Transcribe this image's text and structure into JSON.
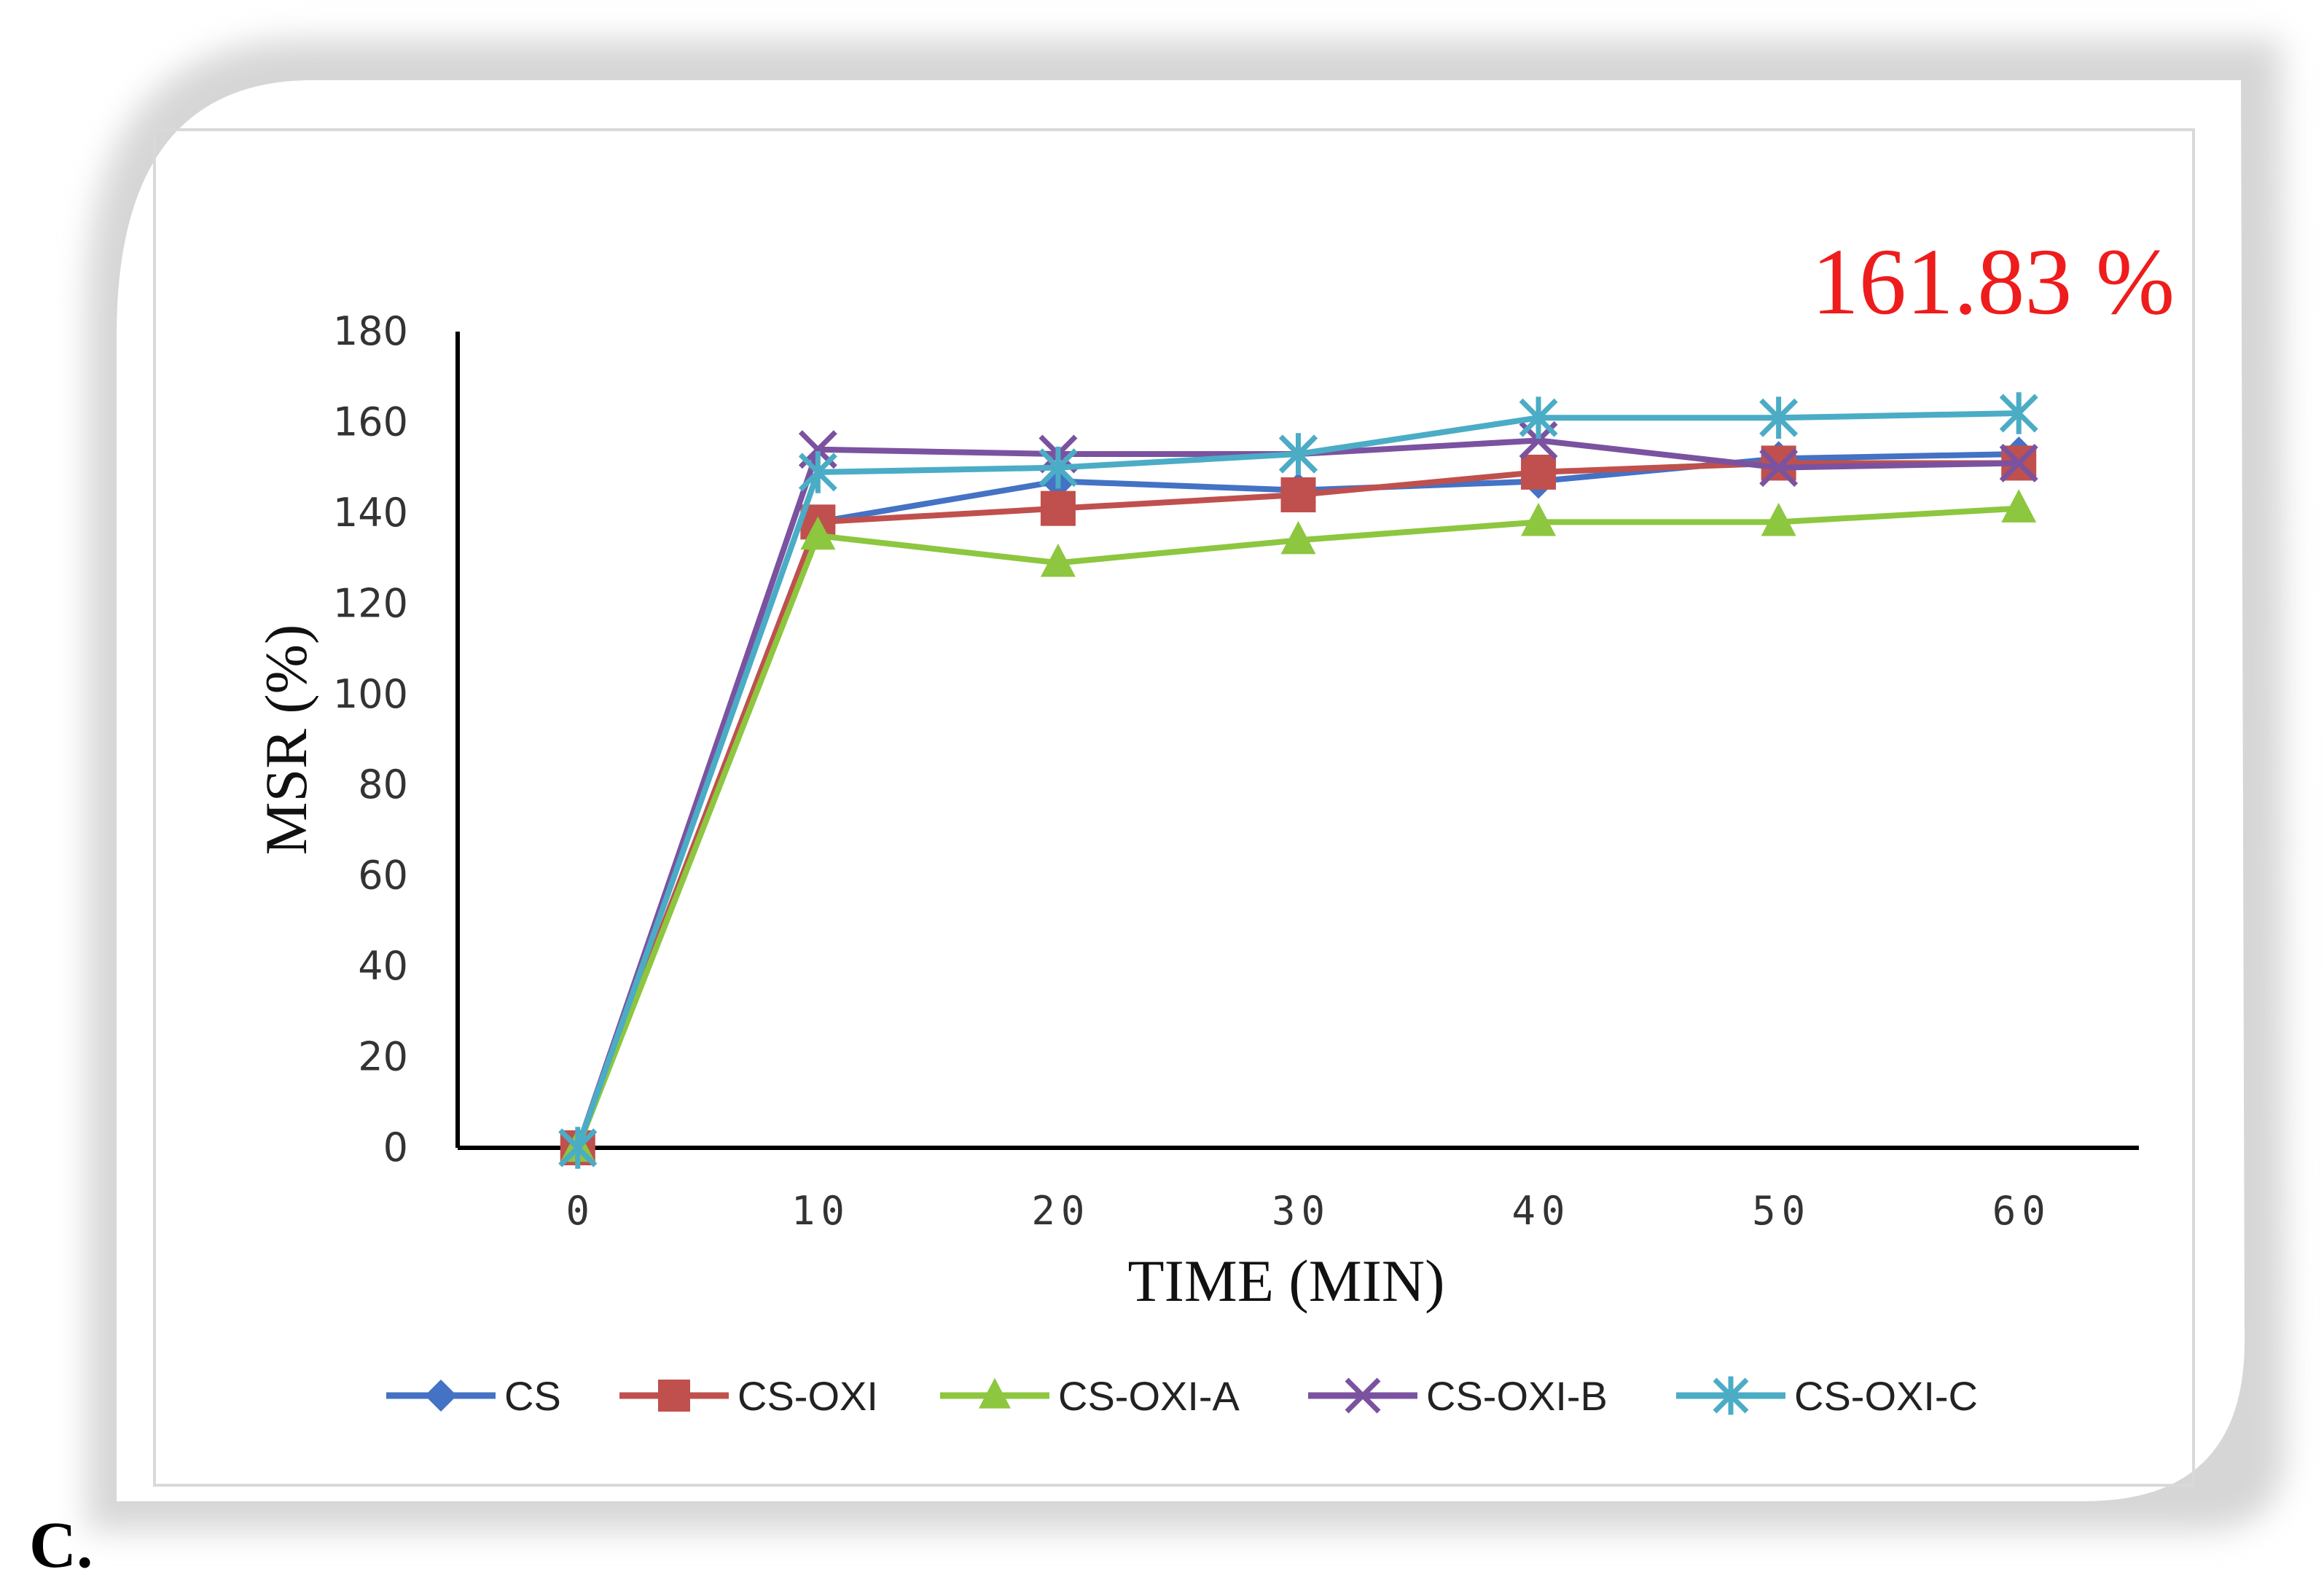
{
  "panel_label": "C.",
  "highlight": {
    "text": "161.83 %",
    "color": "#ee1c1c"
  },
  "chart_data": {
    "type": "line",
    "title": "",
    "xlabel": "TIME (MIN)",
    "ylabel": "MSR (%)",
    "x": [
      0,
      10,
      20,
      30,
      40,
      50,
      60
    ],
    "xlim": [
      -5,
      65
    ],
    "ylim": [
      0,
      180
    ],
    "yticks": [
      0,
      20,
      40,
      60,
      80,
      100,
      120,
      140,
      160,
      180
    ],
    "grid": false,
    "legend_position": "bottom",
    "series": [
      {
        "name": "CS",
        "color": "#4472c4",
        "marker": "diamond",
        "values": [
          0,
          138,
          147,
          145,
          147,
          152,
          153
        ]
      },
      {
        "name": "CS-OXI",
        "color": "#c0504d",
        "marker": "square",
        "values": [
          0,
          138,
          141,
          144,
          149,
          151,
          151
        ]
      },
      {
        "name": "CS-OXI-A",
        "color": "#8dc63f",
        "marker": "triangle",
        "values": [
          0,
          135,
          129,
          134,
          138,
          138,
          141
        ]
      },
      {
        "name": "CS-OXI-B",
        "color": "#7b52a0",
        "marker": "x",
        "values": [
          0,
          154,
          153,
          153,
          156,
          150,
          151
        ]
      },
      {
        "name": "CS-OXI-C",
        "color": "#4bacc6",
        "marker": "asterisk",
        "values": [
          0,
          149,
          150,
          153,
          161,
          161,
          162
        ]
      }
    ]
  }
}
